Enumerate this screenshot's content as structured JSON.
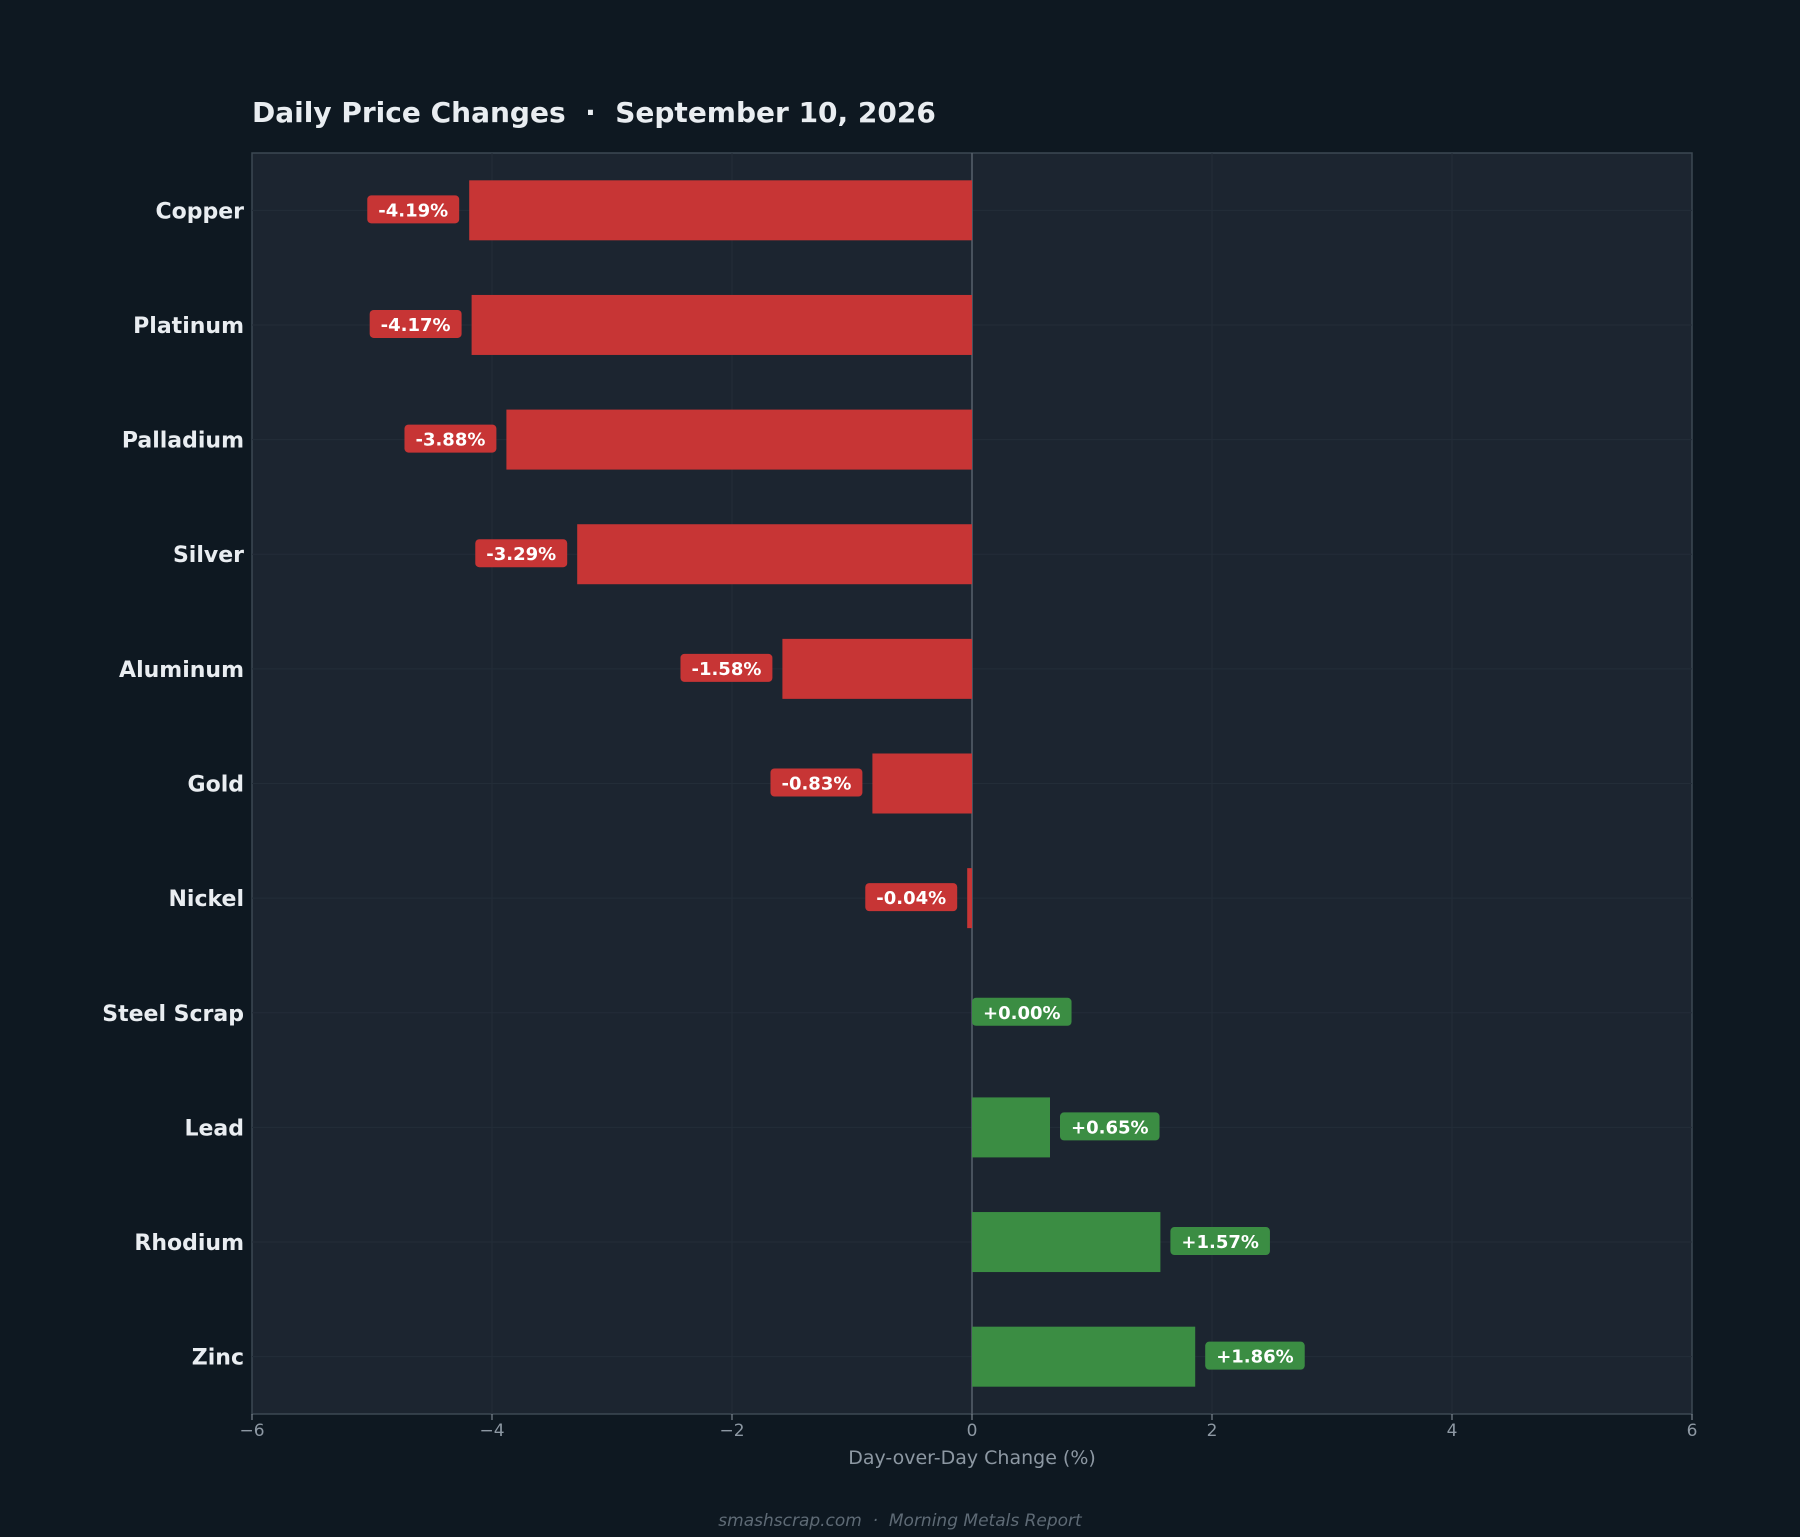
{
  "chart_data": {
    "type": "bar",
    "orientation": "horizontal",
    "title": "Daily Price Changes  ·  September 10, 2026",
    "xlabel": "Day-over-Day Change (%)",
    "ylabel": "",
    "xlim": [
      -6,
      6
    ],
    "xticks": [
      -6,
      -4,
      -2,
      0,
      2,
      4,
      6
    ],
    "xtick_labels": [
      "−6",
      "−4",
      "−2",
      "0",
      "2",
      "4",
      "6"
    ],
    "grid": true,
    "categories": [
      "Copper",
      "Platinum",
      "Palladium",
      "Silver",
      "Aluminum",
      "Gold",
      "Nickel",
      "Steel Scrap",
      "Lead",
      "Rhodium",
      "Zinc"
    ],
    "values": [
      -4.19,
      -4.17,
      -3.88,
      -3.29,
      -1.58,
      -0.83,
      -0.04,
      0.0,
      0.65,
      1.57,
      1.86
    ],
    "data_labels": [
      "-4.19%",
      "-4.17%",
      "-3.88%",
      "-3.29%",
      "-1.58%",
      "-0.83%",
      "-0.04%",
      "+0.00%",
      "+0.65%",
      "+1.57%",
      "+1.86%"
    ],
    "colors": {
      "negative": "#c73535",
      "positive": "#3b8d43"
    }
  },
  "footer": "smashscrap.com  ·  Morning Metals Report",
  "theme": {
    "page_bg": "#0e1821",
    "plot_bg": "#1c2530",
    "plot_border": "#3c4853",
    "zero_line": "#56616c",
    "grid": "#232d38"
  }
}
